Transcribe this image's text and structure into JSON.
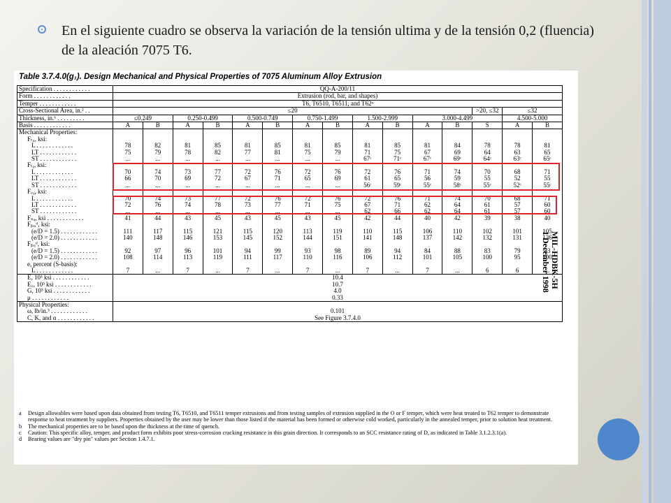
{
  "slide": {
    "intro_text": "En el siguiente cuadro se observa la variación de la tensión ultima y de la tensión 0,2 (fluencia) de la aleación 7075 T6."
  },
  "document": {
    "title": "Table 3.7.4.0(g₁).  Design Mechanical and Physical Properties of 7075 Aluminum Alloy Extrusion",
    "side_label_line1": "MIL-HDBK-5H",
    "side_label_line2": "1 December 1998",
    "rows": {
      "specification": {
        "label": "Specification",
        "value": "QQ-A-200/11"
      },
      "form": {
        "label": "Form",
        "value": "Extrusion (rod, bar, and shapes)"
      },
      "temper": {
        "label": "Temper",
        "value": "T6, T6510, T6511, and T62ᵃ"
      },
      "area": {
        "label": "Cross-Sectional Area, in.²",
        "v1": "≤20",
        "v2": ">20, ≤32",
        "v3": "≤32"
      },
      "thickness": {
        "label": "Thickness, in.ᵇ",
        "values": [
          "≤0.249",
          "0.250-0.499",
          "0.500-0.749",
          "0.750-1.499",
          "1.500-2.999",
          "3.000-4.499",
          "4.500-5.000"
        ]
      },
      "basis": {
        "label": "Basis",
        "values": [
          "A",
          "B",
          "A",
          "B",
          "A",
          "B",
          "A",
          "B",
          "A",
          "B",
          "A",
          "B",
          "S",
          "A",
          "B"
        ]
      }
    },
    "mech_header": "Mechanical Properties:",
    "groups": [
      {
        "header": "Fₜᵤ, ksi:",
        "rows": [
          {
            "label": "L",
            "values": [
              "78",
              "82",
              "81",
              "85",
              "81",
              "85",
              "81",
              "85",
              "81",
              "85",
              "81",
              "84",
              "78",
              "78",
              "81"
            ]
          },
          {
            "label": "LT",
            "values": [
              "75",
              "79",
              "78",
              "82",
              "77",
              "81",
              "75",
              "79",
              "71",
              "75",
              "67",
              "69",
              "64",
              "63",
              "65"
            ]
          },
          {
            "label": "ST",
            "values": [
              "...",
              "...",
              "...",
              "...",
              "...",
              "...",
              "...",
              "...",
              "67ᶜ",
              "71ᶜ",
              "67ᶜ",
              "69ᶜ",
              "64ᶜ",
              "63ᶜ",
              "65ᶜ"
            ]
          }
        ]
      },
      {
        "header": "Fₜᵧ, ksi:",
        "rows": [
          {
            "label": "L",
            "values": [
              "70",
              "74",
              "73",
              "77",
              "72",
              "76",
              "72",
              "76",
              "72",
              "76",
              "71",
              "74",
              "70",
              "68",
              "71"
            ]
          },
          {
            "label": "LT",
            "values": [
              "66",
              "70",
              "69",
              "72",
              "67",
              "71",
              "65",
              "69",
              "61",
              "65",
              "56",
              "59",
              "55",
              "52",
              "55"
            ]
          },
          {
            "label": "ST",
            "values": [
              "...",
              "...",
              "...",
              "...",
              "...",
              "...",
              "...",
              "...",
              "56ᶜ",
              "59ᶜ",
              "55ᶜ",
              "58ᶜ",
              "55ᶜ",
              "52ᶜ",
              "55ᶜ"
            ]
          }
        ]
      },
      {
        "header": "F꜀ᵧ, ksi:",
        "rows": [
          {
            "label": "L",
            "values": [
              "70",
              "74",
              "73",
              "77",
              "72",
              "76",
              "72",
              "76",
              "72",
              "76",
              "71",
              "74",
              "70",
              "68",
              "71"
            ]
          },
          {
            "label": "LT",
            "values": [
              "72",
              "76",
              "74",
              "78",
              "73",
              "77",
              "71",
              "75",
              "67",
              "71",
              "62",
              "64",
              "61",
              "57",
              "60"
            ]
          },
          {
            "label": "ST",
            "values": [
              "...",
              "...",
              "...",
              "...",
              "...",
              "...",
              "...",
              "...",
              "62",
              "66",
              "62",
              "64",
              "61",
              "57",
              "60"
            ]
          }
        ]
      },
      {
        "header": "",
        "rows": [
          {
            "label": "Fₛᵤ, ksi",
            "values": [
              "41",
              "44",
              "43",
              "45",
              "43",
              "45",
              "43",
              "45",
              "42",
              "44",
              "40",
              "42",
              "39",
              "38",
              "40"
            ]
          }
        ]
      },
      {
        "header": "Fᵦᵣᵤᵈ, ksi:",
        "rows": [
          {
            "label": "(e/D = 1.5)",
            "values": [
              "111",
              "117",
              "115",
              "121",
              "115",
              "120",
              "113",
              "119",
              "110",
              "115",
              "106",
              "110",
              "102",
              "101",
              "105"
            ]
          },
          {
            "label": "(e/D = 2.0)",
            "values": [
              "140",
              "148",
              "146",
              "153",
              "145",
              "152",
              "144",
              "151",
              "141",
              "148",
              "137",
              "142",
              "132",
              "131",
              "136"
            ]
          }
        ]
      },
      {
        "header": "Fᵦᵣᵧᵈ, ksi:",
        "rows": [
          {
            "label": "(e/D = 1.5)",
            "values": [
              "92",
              "97",
              "96",
              "101",
              "94",
              "99",
              "93",
              "98",
              "89",
              "94",
              "84",
              "88",
              "83",
              "79",
              "83"
            ]
          },
          {
            "label": "(e/D = 2.0)",
            "values": [
              "108",
              "114",
              "113",
              "119",
              "111",
              "117",
              "110",
              "116",
              "106",
              "112",
              "101",
              "105",
              "100",
              "95",
              "100"
            ]
          }
        ]
      },
      {
        "header": "e, percent (S-basis):",
        "rows": [
          {
            "label": "L",
            "values": [
              "7",
              "...",
              "7",
              "...",
              "7",
              "...",
              "7",
              "...",
              "7",
              "...",
              "7",
              "...",
              "6",
              "6",
              "..."
            ]
          }
        ]
      }
    ],
    "elastic": [
      {
        "label": "E, 10³ ksi",
        "value": "10.4"
      },
      {
        "label": "E꜀, 10³ ksi",
        "value": "10.7"
      },
      {
        "label": "G, 10³ ksi",
        "value": "4.0"
      },
      {
        "label": "μ",
        "value": "0.33"
      }
    ],
    "physical_header": "Physical Properties:",
    "physical": [
      {
        "label": "ω, lb/in.³",
        "value": "0.101"
      },
      {
        "label": "C, K, and α",
        "value": "See Figure 3.7.4.0"
      }
    ],
    "notes": [
      {
        "k": "a",
        "text": "Design allowables were based upon data obtained from testing T6, T6510, and T6511 temper extrusions and from testing samples of extrusion supplied in the O or F temper, which were heat treated to T62 temper to demonstrate response to heat treatment by suppliers. Properties obtained by the user may be lower than those listed if the material has been formed or otherwise cold worked, particularly in the annealed temper, prior to solution heat treatment."
      },
      {
        "k": "b",
        "text": "The mechanical properties are to be based upon the thickness at the time of quench."
      },
      {
        "k": "c",
        "text": "Caution: This specific alloy, temper, and product form exhibits poor stress-corrosion cracking resistance in this grain direction. It corresponds to an SCC resistance rating of D, as indicated in Table 3.1.2.3.1(a)."
      },
      {
        "k": "d",
        "text": "Bearing values are \"dry pin\" values per Section 1.4.7.1."
      }
    ]
  },
  "colors": {
    "highlight_border": "#e0222b",
    "accent_blue": "#4f87cc",
    "bullet": "#5b8fd0"
  }
}
